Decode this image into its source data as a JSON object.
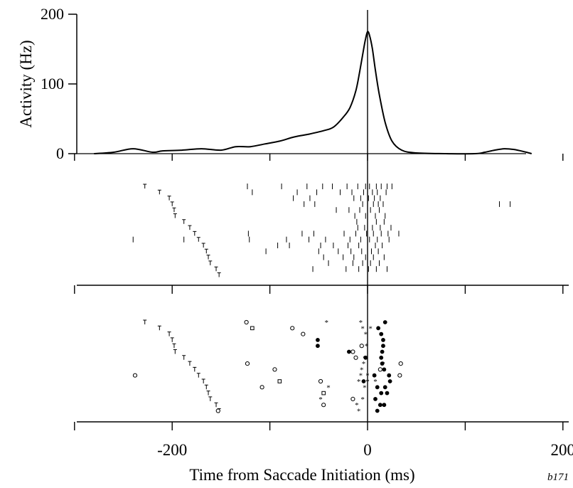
{
  "chart_data": [
    {
      "type": "line",
      "ylabel": "Activity (Hz)",
      "ylim": [
        0,
        200
      ],
      "yticks": [
        0,
        100,
        200
      ],
      "xlim": [
        -300,
        200
      ],
      "x": [
        -280,
        -260,
        -240,
        -220,
        -210,
        -190,
        -170,
        -150,
        -135,
        -120,
        -105,
        -90,
        -75,
        -60,
        -45,
        -35,
        -25,
        -18,
        -12,
        -8,
        -4,
        -2,
        0,
        2,
        5,
        8,
        12,
        18,
        25,
        35,
        50,
        80,
        110,
        120,
        130,
        140,
        150,
        160,
        168
      ],
      "values": [
        0,
        2,
        7,
        2,
        4,
        5,
        7,
        5,
        10,
        10,
        14,
        18,
        24,
        28,
        33,
        38,
        52,
        66,
        90,
        118,
        150,
        165,
        175,
        170,
        150,
        120,
        85,
        45,
        18,
        5,
        1,
        0,
        0,
        2,
        5,
        7,
        6,
        3,
        0
      ],
      "color": "#000000"
    },
    {
      "type": "scatter",
      "panel": "raster-pulse",
      "xlim": [
        -300,
        200
      ],
      "rows": 15,
      "series": [
        {
          "marker": "T",
          "points": [
            [
              -228,
              1
            ],
            [
              -213,
              2
            ],
            [
              -203,
              3
            ],
            [
              -200,
              4
            ],
            [
              -198,
              5
            ],
            [
              -197,
              6
            ],
            [
              -188,
              7
            ],
            [
              -182,
              8
            ],
            [
              -177,
              9
            ],
            [
              -173,
              10
            ],
            [
              -168,
              11
            ],
            [
              -165,
              12
            ],
            [
              -163,
              13
            ],
            [
              -161,
              14
            ],
            [
              -155,
              15
            ],
            [
              -152,
              16
            ]
          ]
        },
        {
          "marker": "|",
          "points": [
            [
              -123,
              1
            ],
            [
              -88,
              1
            ],
            [
              -62,
              1
            ],
            [
              -46,
              1
            ],
            [
              -36,
              1
            ],
            [
              -21,
              1
            ],
            [
              -10,
              1
            ],
            [
              -2,
              1
            ],
            [
              2,
              1
            ],
            [
              9,
              1
            ],
            [
              14,
              1
            ],
            [
              20,
              1
            ],
            [
              25,
              1
            ],
            [
              -118,
              2
            ],
            [
              -72,
              2
            ],
            [
              -52,
              2
            ],
            [
              -28,
              2
            ],
            [
              -16,
              2
            ],
            [
              -4,
              2
            ],
            [
              5,
              2
            ],
            [
              10,
              2
            ],
            [
              19,
              2
            ],
            [
              -76,
              3
            ],
            [
              -59,
              3
            ],
            [
              -14,
              3
            ],
            [
              -7,
              3
            ],
            [
              1,
              3
            ],
            [
              7,
              3
            ],
            [
              13,
              3
            ],
            [
              -65,
              4
            ],
            [
              -54,
              4
            ],
            [
              -5,
              4
            ],
            [
              6,
              4
            ],
            [
              11,
              4
            ],
            [
              16,
              4
            ],
            [
              135,
              4
            ],
            [
              146,
              4
            ],
            [
              -32,
              5
            ],
            [
              -19,
              5
            ],
            [
              -8,
              5
            ],
            [
              3,
              5
            ],
            [
              12,
              5
            ],
            [
              -13,
              6
            ],
            [
              -2,
              6
            ],
            [
              8,
              6
            ],
            [
              18,
              6
            ],
            [
              -11,
              7
            ],
            [
              0,
              7
            ],
            [
              9,
              7
            ],
            [
              17,
              7
            ],
            [
              -10,
              8
            ],
            [
              -3,
              8
            ],
            [
              5,
              8
            ],
            [
              13,
              8
            ],
            [
              24,
              8
            ],
            [
              -122,
              9
            ],
            [
              -67,
              9
            ],
            [
              -55,
              9
            ],
            [
              -24,
              9
            ],
            [
              -12,
              9
            ],
            [
              -1,
              9
            ],
            [
              6,
              9
            ],
            [
              14,
              9
            ],
            [
              21,
              9
            ],
            [
              32,
              9
            ],
            [
              -240,
              10
            ],
            [
              -188,
              10
            ],
            [
              -121,
              10
            ],
            [
              -83,
              10
            ],
            [
              -60,
              10
            ],
            [
              -43,
              10
            ],
            [
              -18,
              10
            ],
            [
              -7,
              10
            ],
            [
              2,
              10
            ],
            [
              10,
              10
            ],
            [
              22,
              10
            ],
            [
              -92,
              11
            ],
            [
              -80,
              11
            ],
            [
              -48,
              11
            ],
            [
              -35,
              11
            ],
            [
              -20,
              11
            ],
            [
              -9,
              11
            ],
            [
              0,
              11
            ],
            [
              8,
              11
            ],
            [
              15,
              11
            ],
            [
              -104,
              12
            ],
            [
              -50,
              12
            ],
            [
              -30,
              12
            ],
            [
              -17,
              12
            ],
            [
              -6,
              12
            ],
            [
              4,
              12
            ],
            [
              11,
              12
            ],
            [
              -45,
              13
            ],
            [
              -25,
              13
            ],
            [
              -14,
              13
            ],
            [
              -2,
              13
            ],
            [
              6,
              13
            ],
            [
              17,
              13
            ],
            [
              -40,
              14
            ],
            [
              -15,
              14
            ],
            [
              -5,
              14
            ],
            [
              3,
              14
            ],
            [
              12,
              14
            ],
            [
              -56,
              15
            ],
            [
              -22,
              15
            ],
            [
              -9,
              15
            ],
            [
              1,
              15
            ],
            [
              9,
              15
            ],
            [
              20,
              15
            ]
          ]
        }
      ]
    },
    {
      "type": "scatter",
      "panel": "raster-events",
      "xlim": [
        -300,
        200
      ],
      "rows": 15,
      "series": [
        {
          "marker": "T",
          "points": [
            [
              -228,
              1
            ],
            [
              -213,
              2
            ],
            [
              -203,
              3
            ],
            [
              -200,
              4
            ],
            [
              -198,
              5
            ],
            [
              -197,
              6
            ],
            [
              -188,
              7
            ],
            [
              -182,
              8
            ],
            [
              -177,
              9
            ],
            [
              -173,
              10
            ],
            [
              -168,
              11
            ],
            [
              -165,
              12
            ],
            [
              -163,
              13
            ],
            [
              -161,
              14
            ],
            [
              -155,
              15
            ],
            [
              -152,
              16
            ]
          ]
        },
        {
          "marker": "open-circle",
          "points": [
            [
              -124,
              1
            ],
            [
              -77,
              2
            ],
            [
              -66,
              3
            ],
            [
              -6,
              5
            ],
            [
              -15,
              6
            ],
            [
              -12,
              7
            ],
            [
              -123,
              8
            ],
            [
              -95,
              9
            ],
            [
              -238,
              10
            ],
            [
              -48,
              11
            ],
            [
              -108,
              12
            ],
            [
              -15,
              14
            ],
            [
              -45,
              15
            ],
            [
              -153,
              16
            ],
            [
              34,
              8
            ],
            [
              13,
              9
            ],
            [
              33,
              10
            ]
          ]
        },
        {
          "marker": "open-square",
          "points": [
            [
              -118,
              2
            ],
            [
              -90,
              11
            ],
            [
              -45,
              13
            ]
          ]
        },
        {
          "marker": "filled-circle",
          "points": [
            [
              18,
              1
            ],
            [
              11,
              2
            ],
            [
              14,
              3
            ],
            [
              -51,
              4
            ],
            [
              16,
              4
            ],
            [
              -51,
              5
            ],
            [
              16,
              5
            ],
            [
              -19,
              6
            ],
            [
              15,
              6
            ],
            [
              -2,
              7
            ],
            [
              14,
              7
            ],
            [
              15,
              8
            ],
            [
              17,
              9
            ],
            [
              7,
              10
            ],
            [
              22,
              10
            ],
            [
              -4,
              11
            ],
            [
              23,
              11
            ],
            [
              10,
              12
            ],
            [
              18,
              12
            ],
            [
              14,
              13
            ],
            [
              20,
              13
            ],
            [
              8,
              14
            ],
            [
              13,
              15
            ],
            [
              17,
              15
            ],
            [
              10,
              16
            ]
          ]
        },
        {
          "marker": "asterisk",
          "points": [
            [
              -42,
              1
            ],
            [
              -7,
              1
            ],
            [
              -5,
              2
            ],
            [
              3,
              2
            ],
            [
              -2,
              3
            ],
            [
              -1,
              5
            ],
            [
              -3,
              7
            ],
            [
              -4,
              8
            ],
            [
              16,
              8
            ],
            [
              -6,
              9
            ],
            [
              -7,
              10
            ],
            [
              0,
              10
            ],
            [
              -9,
              11
            ],
            [
              0,
              11
            ],
            [
              8,
              11
            ],
            [
              -40,
              12
            ],
            [
              -3,
              12
            ],
            [
              -48,
              14
            ],
            [
              -5,
              14
            ],
            [
              -11,
              15
            ],
            [
              -9,
              16
            ]
          ]
        }
      ]
    }
  ],
  "xaxis": {
    "label": "Time from Saccade Initiation (ms)",
    "ticklabels": [
      "-200",
      "0",
      "200"
    ],
    "minor_ticks": [
      -300,
      -200,
      -100,
      0,
      100,
      200
    ]
  },
  "annotation": "b171"
}
